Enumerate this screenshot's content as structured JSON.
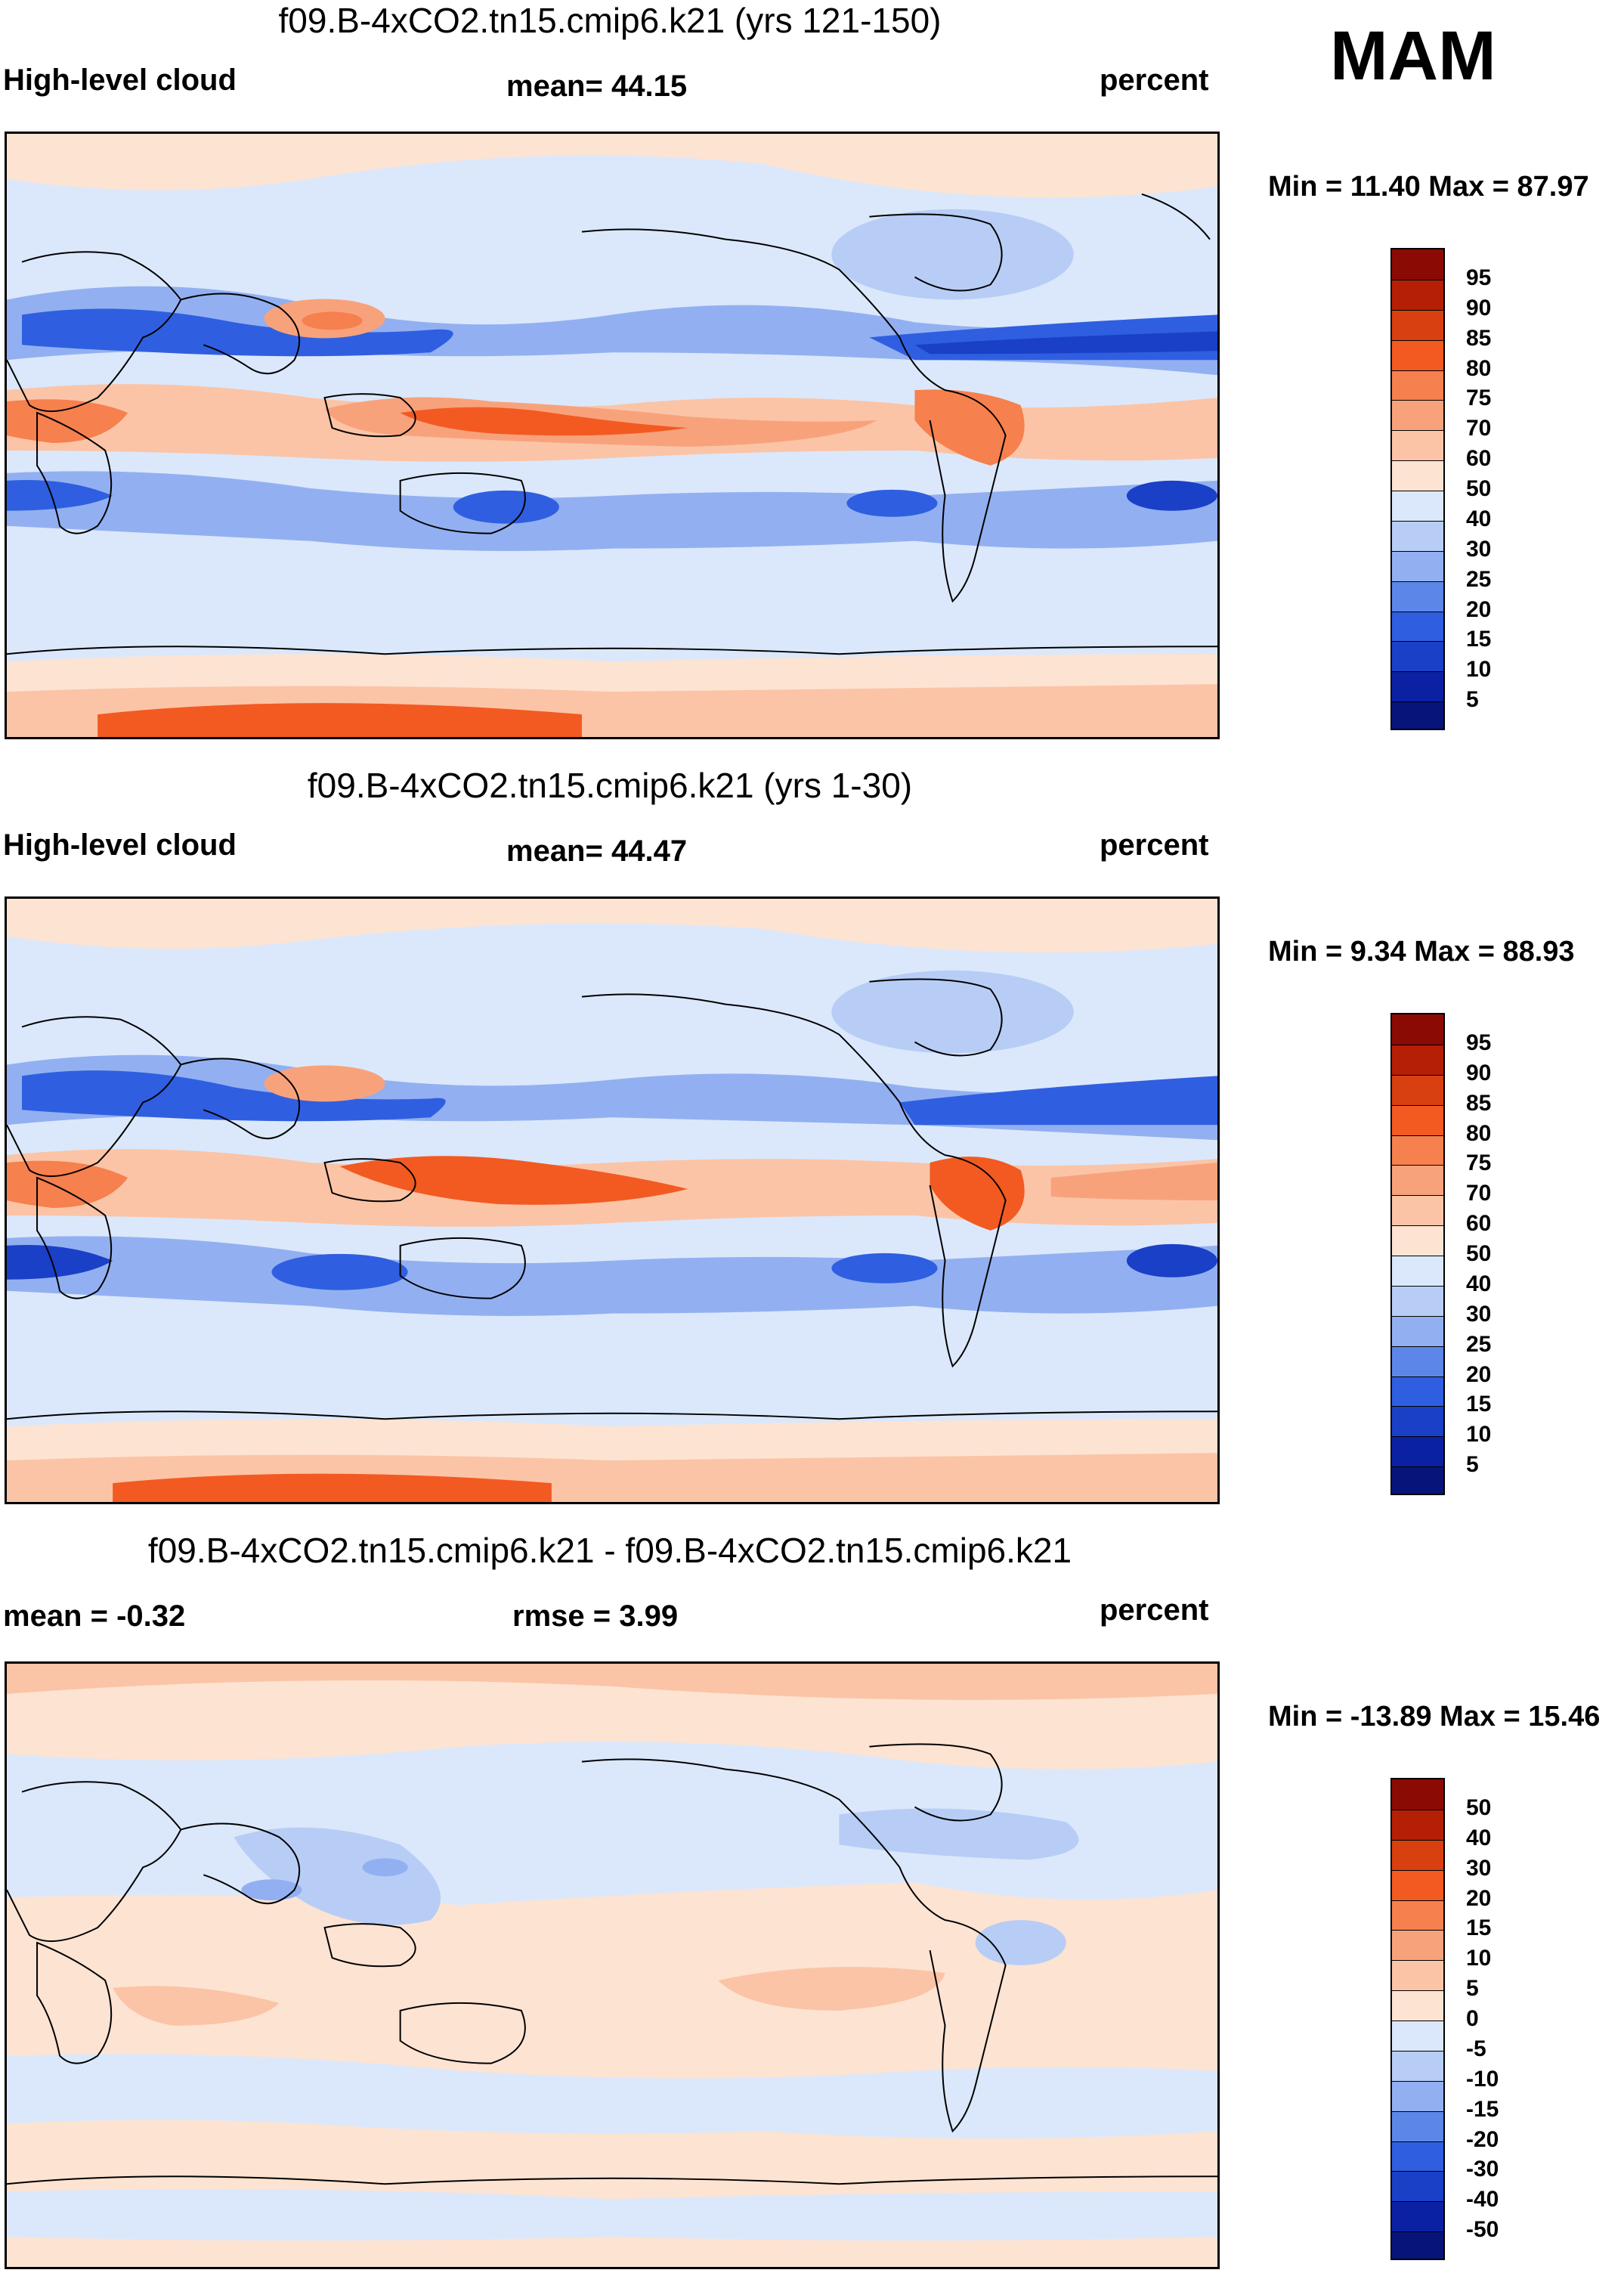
{
  "season": "MAM",
  "panels": [
    {
      "title": "f09.B-4xCO2.tn15.cmip6.k21 (yrs 121-150)",
      "left_label": "High-level cloud",
      "center_label": "mean=  44.15",
      "right_label": "percent",
      "minmax": "Min =  11.40 Max =  87.97",
      "scheme": "abs"
    },
    {
      "title": "f09.B-4xCO2.tn15.cmip6.k21 (yrs 1-30)",
      "left_label": "High-level cloud",
      "center_label": "mean=  44.47",
      "right_label": "percent",
      "minmax": "Min =   9.34 Max =  88.93",
      "scheme": "abs"
    },
    {
      "title": "f09.B-4xCO2.tn15.cmip6.k21 - f09.B-4xCO2.tn15.cmip6.k21",
      "left_label": "mean =  -0.32",
      "center_label": "rmse =    3.99",
      "right_label": "percent",
      "minmax": "Min = -13.89 Max =  15.46",
      "scheme": "diff"
    }
  ],
  "colorbars": {
    "abs": {
      "labels": [
        "95",
        "90",
        "85",
        "80",
        "75",
        "70",
        "60",
        "50",
        "40",
        "30",
        "25",
        "20",
        "15",
        "10",
        "5"
      ],
      "colors": [
        "#8b0a04",
        "#b51f05",
        "#d8400f",
        "#f25a22",
        "#f6804e",
        "#f8a27c",
        "#fbc4a6",
        "#fde3d2",
        "#dbe8fb",
        "#b7cdf6",
        "#92b0f1",
        "#5c87e8",
        "#2f5fe0",
        "#1a40c7",
        "#0b21a3",
        "#07157a"
      ]
    },
    "diff": {
      "labels": [
        "50",
        "40",
        "30",
        "20",
        "15",
        "10",
        "5",
        "0",
        "-5",
        "-10",
        "-15",
        "-20",
        "-30",
        "-40",
        "-50"
      ],
      "colors": [
        "#8b0a04",
        "#b51f05",
        "#d8400f",
        "#f25a22",
        "#f6804e",
        "#f8a27c",
        "#fbc4a6",
        "#fde3d2",
        "#dbe8fb",
        "#b7cdf6",
        "#92b0f1",
        "#5c87e8",
        "#2f5fe0",
        "#1a40c7",
        "#0b21a3",
        "#07157a"
      ]
    }
  }
}
